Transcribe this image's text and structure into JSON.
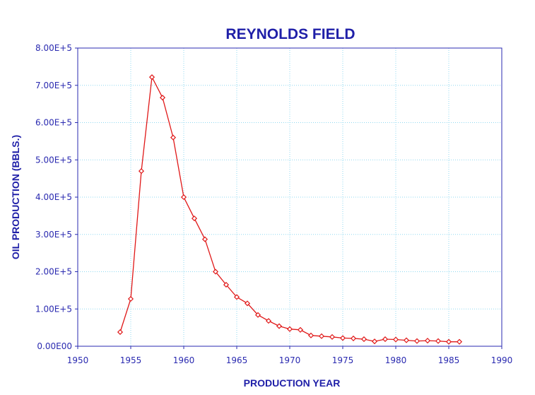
{
  "chart_data": {
    "type": "line",
    "title": "REYNOLDS FIELD",
    "xlabel": "PRODUCTION YEAR",
    "ylabel": "OIL PRODUCTION (BBLS.)",
    "xlim": [
      1950,
      1990
    ],
    "ylim": [
      0,
      800000
    ],
    "xticks": [
      "1950",
      "1955",
      "1960",
      "1965",
      "1970",
      "1975",
      "1980",
      "1985",
      "1990"
    ],
    "yticks": [
      "0.00E00",
      "1.00E+5",
      "2.00E+5",
      "3.00E+5",
      "4.00E+5",
      "5.00E+5",
      "6.00E+5",
      "7.00E+5",
      "8.00E+5"
    ],
    "grid": true,
    "colors": {
      "series": "#e01818",
      "text": "#1f1fa8",
      "grid": "#8fd8f0"
    },
    "series": [
      {
        "x": [
          1954,
          1955,
          1956,
          1957,
          1958,
          1959,
          1960,
          1961,
          1962,
          1963,
          1964,
          1965,
          1966,
          1967,
          1968,
          1969,
          1970,
          1971,
          1972,
          1973,
          1974,
          1975,
          1976,
          1977,
          1978,
          1979,
          1980,
          1981,
          1982,
          1983,
          1984,
          1985,
          1986
        ],
        "values": [
          38000,
          127000,
          470000,
          722000,
          667000,
          560000,
          400000,
          343000,
          287000,
          200000,
          165000,
          132000,
          115000,
          84000,
          68000,
          54000,
          46000,
          44000,
          29000,
          27000,
          25000,
          22000,
          21000,
          19000,
          13000,
          19000,
          18000,
          16000,
          14000,
          15000,
          14000,
          12000,
          12000
        ]
      }
    ]
  }
}
